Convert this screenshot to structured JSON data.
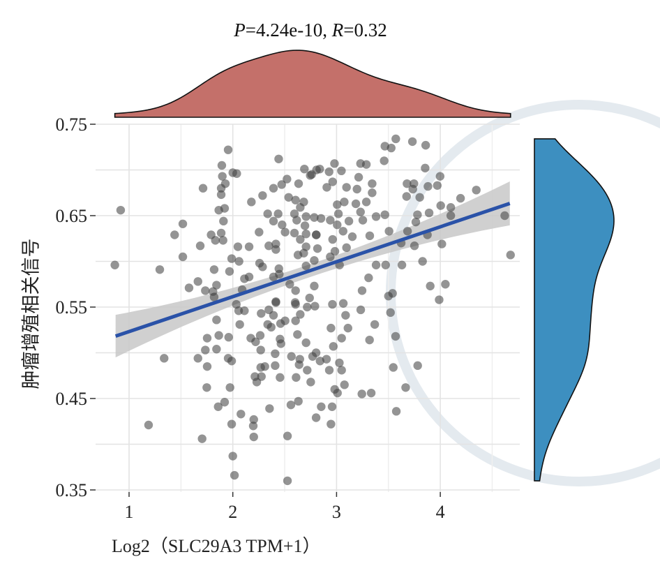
{
  "chart_data": {
    "type": "scatter",
    "title": {
      "p_label": "P",
      "p_value": "=4.24e-10, ",
      "r_label": "R",
      "r_value": "=0.32"
    },
    "xlabel": "Log2（SLC29A3 TPM+1）",
    "ylabel": "肿瘤增殖相关信号",
    "xlim": [
      0.67,
      4.75
    ],
    "ylim": [
      0.35,
      0.75
    ],
    "xticks": [
      "1",
      "2",
      "3",
      "4"
    ],
    "xtick_values": [
      1,
      2,
      3,
      4
    ],
    "yticks": [
      "0.35",
      "0.45",
      "0.55",
      "0.65",
      "0.75"
    ],
    "ytick_values": [
      0.35,
      0.45,
      0.55,
      0.65,
      0.75
    ],
    "grid": true,
    "regression": {
      "slope": 0.0382,
      "intercept": 0.485,
      "x_range": [
        0.87,
        4.67
      ],
      "ci_halfwidth_ends": 0.024,
      "ci_halfwidth_center": 0.007,
      "center_x": 2.75
    },
    "marginal_top": "density of x",
    "marginal_right": "density of y",
    "colors": {
      "points": "#3c3c3c",
      "line": "#2a52a8",
      "ci": "#c8c8c8",
      "top_density": "#c4706a",
      "right_density": "#3d8fc0"
    },
    "points": [
      [
        1.955,
        0.722
      ],
      [
        1.894,
        0.705
      ],
      [
        2.0,
        0.697
      ],
      [
        2.038,
        0.696
      ],
      [
        1.899,
        0.693
      ],
      [
        1.928,
        0.685
      ],
      [
        1.888,
        0.68
      ],
      [
        1.888,
        0.673
      ],
      [
        1.713,
        0.68
      ],
      [
        0.919,
        0.656
      ],
      [
        1.865,
        0.656
      ],
      [
        1.921,
        0.658
      ],
      [
        1.91,
        0.644
      ],
      [
        1.518,
        0.641
      ],
      [
        1.439,
        0.629
      ],
      [
        1.791,
        0.629
      ],
      [
        1.888,
        0.631
      ],
      [
        1.832,
        0.623
      ],
      [
        1.906,
        0.623
      ],
      [
        1.686,
        0.617
      ],
      [
        2.049,
        0.616
      ],
      [
        2.157,
        0.616
      ],
      [
        1.518,
        0.605
      ],
      [
        1.989,
        0.603
      ],
      [
        2.06,
        0.6
      ],
      [
        0.863,
        0.596
      ],
      [
        1.296,
        0.591
      ],
      [
        1.82,
        0.591
      ],
      [
        1.968,
        0.589
      ],
      [
        1.664,
        0.578
      ],
      [
        1.843,
        0.574
      ],
      [
        1.578,
        0.571
      ],
      [
        1.735,
        0.568
      ],
      [
        1.809,
        0.567
      ],
      [
        1.82,
        0.561
      ],
      [
        2.09,
        0.569
      ],
      [
        2.157,
        0.583
      ],
      [
        2.112,
        0.581
      ],
      [
        2.258,
        0.598
      ],
      [
        2.287,
        0.594
      ],
      [
        2.444,
        0.592
      ],
      [
        2.392,
        0.583
      ],
      [
        2.448,
        0.586
      ],
      [
        2.549,
        0.575
      ],
      [
        2.605,
        0.568
      ],
      [
        2.415,
        0.556
      ],
      [
        2.601,
        0.555
      ],
      [
        2.253,
        0.632
      ],
      [
        2.347,
        0.617
      ],
      [
        2.415,
        0.619
      ],
      [
        2.415,
        0.613
      ],
      [
        2.504,
        0.632
      ],
      [
        2.594,
        0.631
      ],
      [
        2.628,
        0.607
      ],
      [
        2.684,
        0.609
      ],
      [
        2.392,
        0.644
      ],
      [
        2.437,
        0.652
      ],
      [
        2.336,
        0.652
      ],
      [
        2.475,
        0.64
      ],
      [
        2.594,
        0.652
      ],
      [
        2.616,
        0.645
      ],
      [
        2.695,
        0.639
      ],
      [
        2.706,
        0.63
      ],
      [
        2.65,
        0.624
      ],
      [
        2.706,
        0.616
      ],
      [
        2.179,
        0.665
      ],
      [
        2.287,
        0.672
      ],
      [
        2.392,
        0.68
      ],
      [
        2.471,
        0.684
      ],
      [
        2.522,
        0.69
      ],
      [
        2.634,
        0.685
      ],
      [
        2.442,
        0.712
      ],
      [
        2.69,
        0.701
      ],
      [
        2.746,
        0.694
      ],
      [
        2.807,
        0.7
      ],
      [
        2.538,
        0.67
      ],
      [
        2.605,
        0.667
      ],
      [
        2.684,
        0.665
      ],
      [
        2.65,
        0.659
      ],
      [
        2.706,
        0.649
      ],
      [
        2.785,
        0.648
      ],
      [
        2.803,
        0.629
      ],
      [
        2.785,
        0.601
      ],
      [
        2.706,
        0.595
      ],
      [
        2.74,
        0.56
      ],
      [
        2.785,
        0.573
      ],
      [
        3.571,
        0.734
      ],
      [
        3.466,
        0.726
      ],
      [
        3.527,
        0.724
      ],
      [
        3.731,
        0.731
      ],
      [
        3.859,
        0.727
      ],
      [
        3.459,
        0.71
      ],
      [
        3.231,
        0.707
      ],
      [
        3.287,
        0.706
      ],
      [
        3.854,
        0.702
      ],
      [
        3.998,
        0.693
      ],
      [
        3.679,
        0.685
      ],
      [
        3.746,
        0.685
      ],
      [
        3.735,
        0.679
      ],
      [
        3.881,
        0.682
      ],
      [
        3.971,
        0.683
      ],
      [
        3.675,
        0.671
      ],
      [
        3.802,
        0.67
      ],
      [
        4.195,
        0.669
      ],
      [
        4.347,
        0.678
      ],
      [
        4.004,
        0.661
      ],
      [
        4.101,
        0.659
      ],
      [
        4.101,
        0.65
      ],
      [
        4.621,
        0.65
      ],
      [
        3.466,
        0.651
      ],
      [
        3.381,
        0.649
      ],
      [
        3.78,
        0.651
      ],
      [
        3.892,
        0.653
      ],
      [
        3.764,
        0.643
      ],
      [
        3.506,
        0.633
      ],
      [
        3.684,
        0.633
      ],
      [
        3.32,
        0.628
      ],
      [
        3.876,
        0.629
      ],
      [
        3.623,
        0.62
      ],
      [
        3.751,
        0.617
      ],
      [
        4.015,
        0.619
      ],
      [
        4.677,
        0.607
      ],
      [
        3.829,
        0.6
      ],
      [
        3.63,
        0.596
      ],
      [
        3.381,
        0.596
      ],
      [
        3.473,
        0.596
      ],
      [
        3.309,
        0.582
      ],
      [
        3.246,
        0.568
      ],
      [
        3.903,
        0.573
      ],
      [
        4.049,
        0.575
      ],
      [
        3.5,
        0.562
      ],
      [
        3.54,
        0.565
      ],
      [
        3.989,
        0.558
      ],
      [
        2.838,
        0.701
      ],
      [
        2.98,
        0.707
      ],
      [
        2.928,
        0.698
      ],
      [
        3.047,
        0.699
      ],
      [
        3.213,
        0.692
      ],
      [
        2.962,
        0.687
      ],
      [
        2.906,
        0.681
      ],
      [
        3.096,
        0.681
      ],
      [
        3.197,
        0.679
      ],
      [
        3.343,
        0.685
      ],
      [
        3.343,
        0.675
      ],
      [
        3.006,
        0.662
      ],
      [
        3.074,
        0.665
      ],
      [
        3.186,
        0.663
      ],
      [
        3.287,
        0.665
      ],
      [
        3.231,
        0.654
      ],
      [
        3.018,
        0.652
      ],
      [
        3.119,
        0.644
      ],
      [
        2.939,
        0.645
      ],
      [
        2.85,
        0.647
      ],
      [
        3.006,
        0.64
      ],
      [
        3.253,
        0.645
      ],
      [
        3.152,
        0.627
      ],
      [
        3.063,
        0.633
      ],
      [
        2.962,
        0.624
      ],
      [
        2.805,
        0.629
      ],
      [
        2.816,
        0.614
      ],
      [
        2.984,
        0.611
      ],
      [
        3.096,
        0.615
      ],
      [
        2.939,
        0.605
      ],
      [
        3.029,
        0.596
      ],
      [
        2.76,
        0.695
      ],
      [
        2.034,
        0.553
      ],
      [
        2.112,
        0.546
      ],
      [
        2.056,
        0.546
      ],
      [
        2.067,
        0.531
      ],
      [
        2.273,
        0.543
      ],
      [
        2.347,
        0.547
      ],
      [
        2.392,
        0.541
      ],
      [
        2.415,
        0.555
      ],
      [
        2.605,
        0.553
      ],
      [
        2.717,
        0.55
      ],
      [
        2.65,
        0.542
      ],
      [
        2.791,
        0.551
      ],
      [
        2.96,
        0.553
      ],
      [
        3.065,
        0.554
      ],
      [
        3.087,
        0.541
      ],
      [
        3.233,
        0.547
      ],
      [
        3.52,
        0.544
      ],
      [
        3.368,
        0.531
      ],
      [
        2.946,
        0.527
      ],
      [
        3.11,
        0.527
      ],
      [
        3.049,
        0.516
      ],
      [
        2.969,
        0.507
      ],
      [
        3.318,
        0.514
      ],
      [
        3.569,
        0.518
      ],
      [
        1.843,
        0.536
      ],
      [
        1.753,
        0.516
      ],
      [
        1.865,
        0.519
      ],
      [
        1.96,
        0.517
      ],
      [
        1.735,
        0.503
      ],
      [
        1.843,
        0.504
      ],
      [
        1.664,
        0.494
      ],
      [
        1.338,
        0.494
      ],
      [
        1.955,
        0.494
      ],
      [
        1.989,
        0.491
      ],
      [
        1.753,
        0.485
      ],
      [
        2.173,
        0.516
      ],
      [
        2.264,
        0.519
      ],
      [
        2.22,
        0.512
      ],
      [
        2.269,
        0.503
      ],
      [
        2.336,
        0.531
      ],
      [
        2.37,
        0.528
      ],
      [
        2.504,
        0.535
      ],
      [
        2.46,
        0.532
      ],
      [
        2.605,
        0.535
      ],
      [
        2.623,
        0.52
      ],
      [
        2.706,
        0.511
      ],
      [
        2.455,
        0.515
      ],
      [
        2.464,
        0.51
      ],
      [
        2.408,
        0.499
      ],
      [
        2.565,
        0.496
      ],
      [
        2.646,
        0.493
      ],
      [
        2.639,
        0.487
      ],
      [
        2.717,
        0.481
      ],
      [
        2.769,
        0.496
      ],
      [
        2.803,
        0.5
      ],
      [
        2.841,
        0.491
      ],
      [
        2.903,
        0.493
      ],
      [
        2.93,
        0.481
      ],
      [
        3.027,
        0.489
      ],
      [
        3.049,
        0.481
      ],
      [
        3.076,
        0.465
      ],
      [
        2.982,
        0.46
      ],
      [
        3.009,
        0.456
      ],
      [
        3.244,
        0.455
      ],
      [
        3.334,
        0.456
      ],
      [
        3.547,
        0.484
      ],
      [
        3.782,
        0.486
      ],
      [
        3.666,
        0.462
      ],
      [
        3.576,
        0.436
      ],
      [
        2.269,
        0.484
      ],
      [
        2.309,
        0.485
      ],
      [
        2.408,
        0.486
      ],
      [
        2.213,
        0.474
      ],
      [
        2.276,
        0.474
      ],
      [
        2.231,
        0.468
      ],
      [
        2.455,
        0.473
      ],
      [
        2.61,
        0.473
      ],
      [
        2.751,
        0.468
      ],
      [
        1.749,
        0.462
      ],
      [
        1.973,
        0.462
      ],
      [
        1.921,
        0.446
      ],
      [
        1.859,
        0.441
      ],
      [
        2.078,
        0.433
      ],
      [
        2.202,
        0.427
      ],
      [
        2.197,
        0.42
      ],
      [
        2.354,
        0.439
      ],
      [
        2.56,
        0.443
      ],
      [
        2.632,
        0.447
      ],
      [
        2.852,
        0.441
      ],
      [
        2.957,
        0.441
      ],
      [
        2.803,
        0.429
      ],
      [
        2.946,
        0.422
      ],
      [
        1.188,
        0.421
      ],
      [
        1.989,
        0.422
      ],
      [
        1.704,
        0.406
      ],
      [
        2.202,
        0.408
      ],
      [
        2.527,
        0.409
      ],
      [
        2.0,
        0.387
      ],
      [
        2.016,
        0.366
      ],
      [
        2.527,
        0.36
      ]
    ]
  }
}
